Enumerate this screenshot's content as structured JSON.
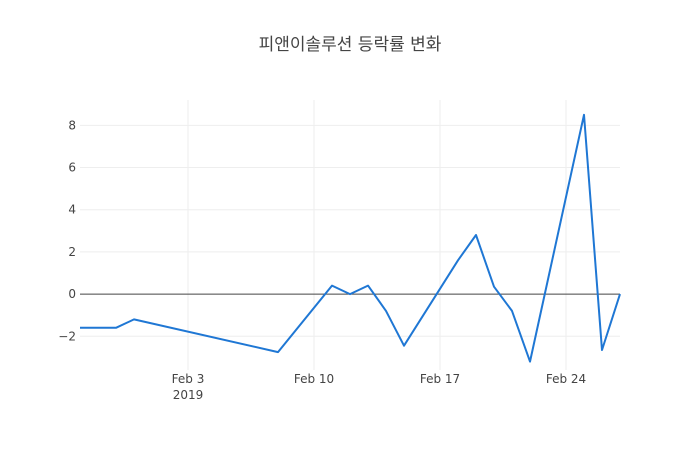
{
  "chart_data": {
    "type": "line",
    "title": "피앤이솔루션 등락률 변화",
    "xlabel": "",
    "ylabel": "",
    "x": [
      "2019-01-28",
      "2019-01-29",
      "2019-01-30",
      "2019-01-31",
      "2019-02-08",
      "2019-02-11",
      "2019-02-12",
      "2019-02-13",
      "2019-02-14",
      "2019-02-15",
      "2019-02-18",
      "2019-02-19",
      "2019-02-20",
      "2019-02-21",
      "2019-02-22",
      "2019-02-25",
      "2019-02-26",
      "2019-02-27"
    ],
    "series": [
      {
        "values": [
          -1.6,
          -1.6,
          -1.6,
          -1.2,
          -2.75,
          0.4,
          0.0,
          0.4,
          -0.8,
          -2.45,
          1.6,
          2.8,
          0.35,
          -0.8,
          -3.2,
          8.5,
          -2.65,
          0.0
        ],
        "color": "#1f77d4"
      }
    ],
    "xlim": [
      "2019-01-28",
      "2019-02-27"
    ],
    "ylim": [
      -3.6,
      9.2
    ],
    "x_ticks": [
      {
        "date": "2019-02-03",
        "label": "Feb 3",
        "sublabel": "2019"
      },
      {
        "date": "2019-02-10",
        "label": "Feb 10",
        "sublabel": ""
      },
      {
        "date": "2019-02-17",
        "label": "Feb 17",
        "sublabel": ""
      },
      {
        "date": "2019-02-24",
        "label": "Feb 24",
        "sublabel": ""
      }
    ],
    "y_ticks": [
      -2,
      0,
      2,
      4,
      6,
      8
    ],
    "y_tick_labels": [
      "−2",
      "0",
      "2",
      "4",
      "6",
      "8"
    ],
    "grid": true,
    "zero_line": true,
    "legend": "none"
  }
}
